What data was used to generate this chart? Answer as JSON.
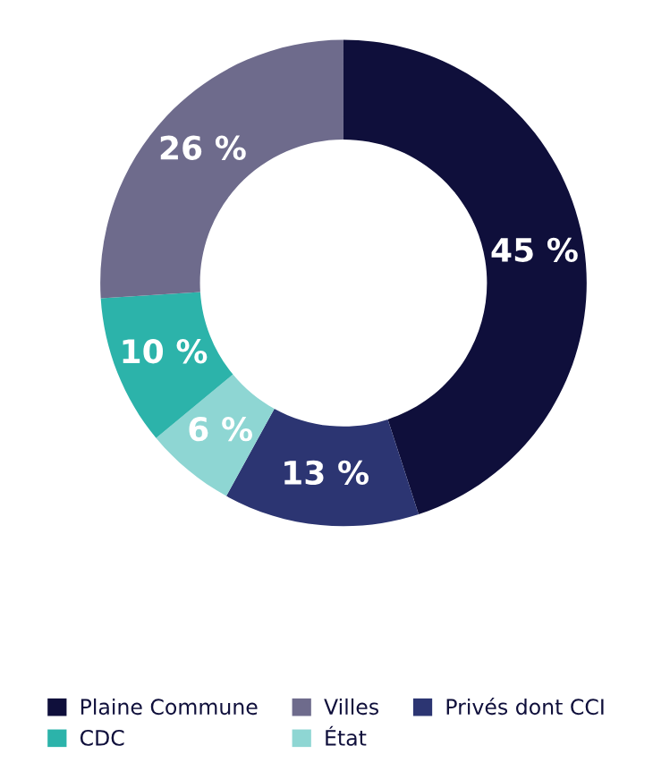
{
  "chart_data": {
    "type": "donut",
    "categories": [
      "Plaine Commune",
      "Privés dont CCI",
      "État",
      "CDC",
      "Villes"
    ],
    "values": [
      45,
      13,
      6,
      10,
      26
    ],
    "value_labels": [
      "45 %",
      "13 %",
      "6 %",
      "10 %",
      "26 %"
    ],
    "colors": [
      "#0f0f3b",
      "#2c3572",
      "#8ed6d3",
      "#2cb3aa",
      "#6e6b8c"
    ],
    "legend": "bottom"
  }
}
